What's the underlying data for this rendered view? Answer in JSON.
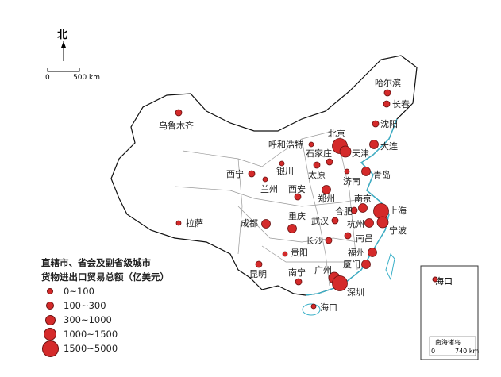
{
  "north_label": "北",
  "scale": {
    "zero": "0",
    "distance": "500 km"
  },
  "legend": {
    "title_line1": "直辖市、省会及副省级城市",
    "title_line2": "货物进出口贸易总额（亿美元）",
    "classes": [
      "0~100",
      "100~300",
      "300~1000",
      "1000~1500",
      "1500~5000"
    ]
  },
  "colors": {
    "city": "#d42a2a",
    "coast": "#3ab0c8",
    "boundary": "#888888"
  },
  "cities": [
    {
      "name": "哈尔滨",
      "class": 1
    },
    {
      "name": "长春",
      "class": 1
    },
    {
      "name": "沈阳",
      "class": 1
    },
    {
      "name": "大连",
      "class": 2
    },
    {
      "name": "北京",
      "class": 4
    },
    {
      "name": "天津",
      "class": 3
    },
    {
      "name": "呼和浩特",
      "class": 0
    },
    {
      "name": "石家庄",
      "class": 1
    },
    {
      "name": "太原",
      "class": 1
    },
    {
      "name": "济南",
      "class": 0
    },
    {
      "name": "青岛",
      "class": 2
    },
    {
      "name": "银川",
      "class": 0
    },
    {
      "name": "兰州",
      "class": 0
    },
    {
      "name": "西宁",
      "class": 1
    },
    {
      "name": "西安",
      "class": 1
    },
    {
      "name": "郑州",
      "class": 2
    },
    {
      "name": "南京",
      "class": 2
    },
    {
      "name": "合肥",
      "class": 1
    },
    {
      "name": "上海",
      "class": 4
    },
    {
      "name": "杭州",
      "class": 2
    },
    {
      "name": "宁波",
      "class": 3
    },
    {
      "name": "武汉",
      "class": 1
    },
    {
      "name": "重庆",
      "class": 2
    },
    {
      "name": "成都",
      "class": 2
    },
    {
      "name": "长沙",
      "class": 1
    },
    {
      "name": "南昌",
      "class": 1
    },
    {
      "name": "福州",
      "class": 2
    },
    {
      "name": "厦门",
      "class": 2
    },
    {
      "name": "贵阳",
      "class": 0
    },
    {
      "name": "昆明",
      "class": 1
    },
    {
      "name": "南宁",
      "class": 1
    },
    {
      "name": "广州",
      "class": 3
    },
    {
      "name": "深圳",
      "class": 4
    },
    {
      "name": "海口",
      "class": 0
    },
    {
      "name": "乌鲁木齐",
      "class": 1
    },
    {
      "name": "拉萨",
      "class": 0
    }
  ],
  "inset": {
    "title": "南海诸岛",
    "city": "海口",
    "scale_zero": "0",
    "scale_distance": "740 km"
  }
}
